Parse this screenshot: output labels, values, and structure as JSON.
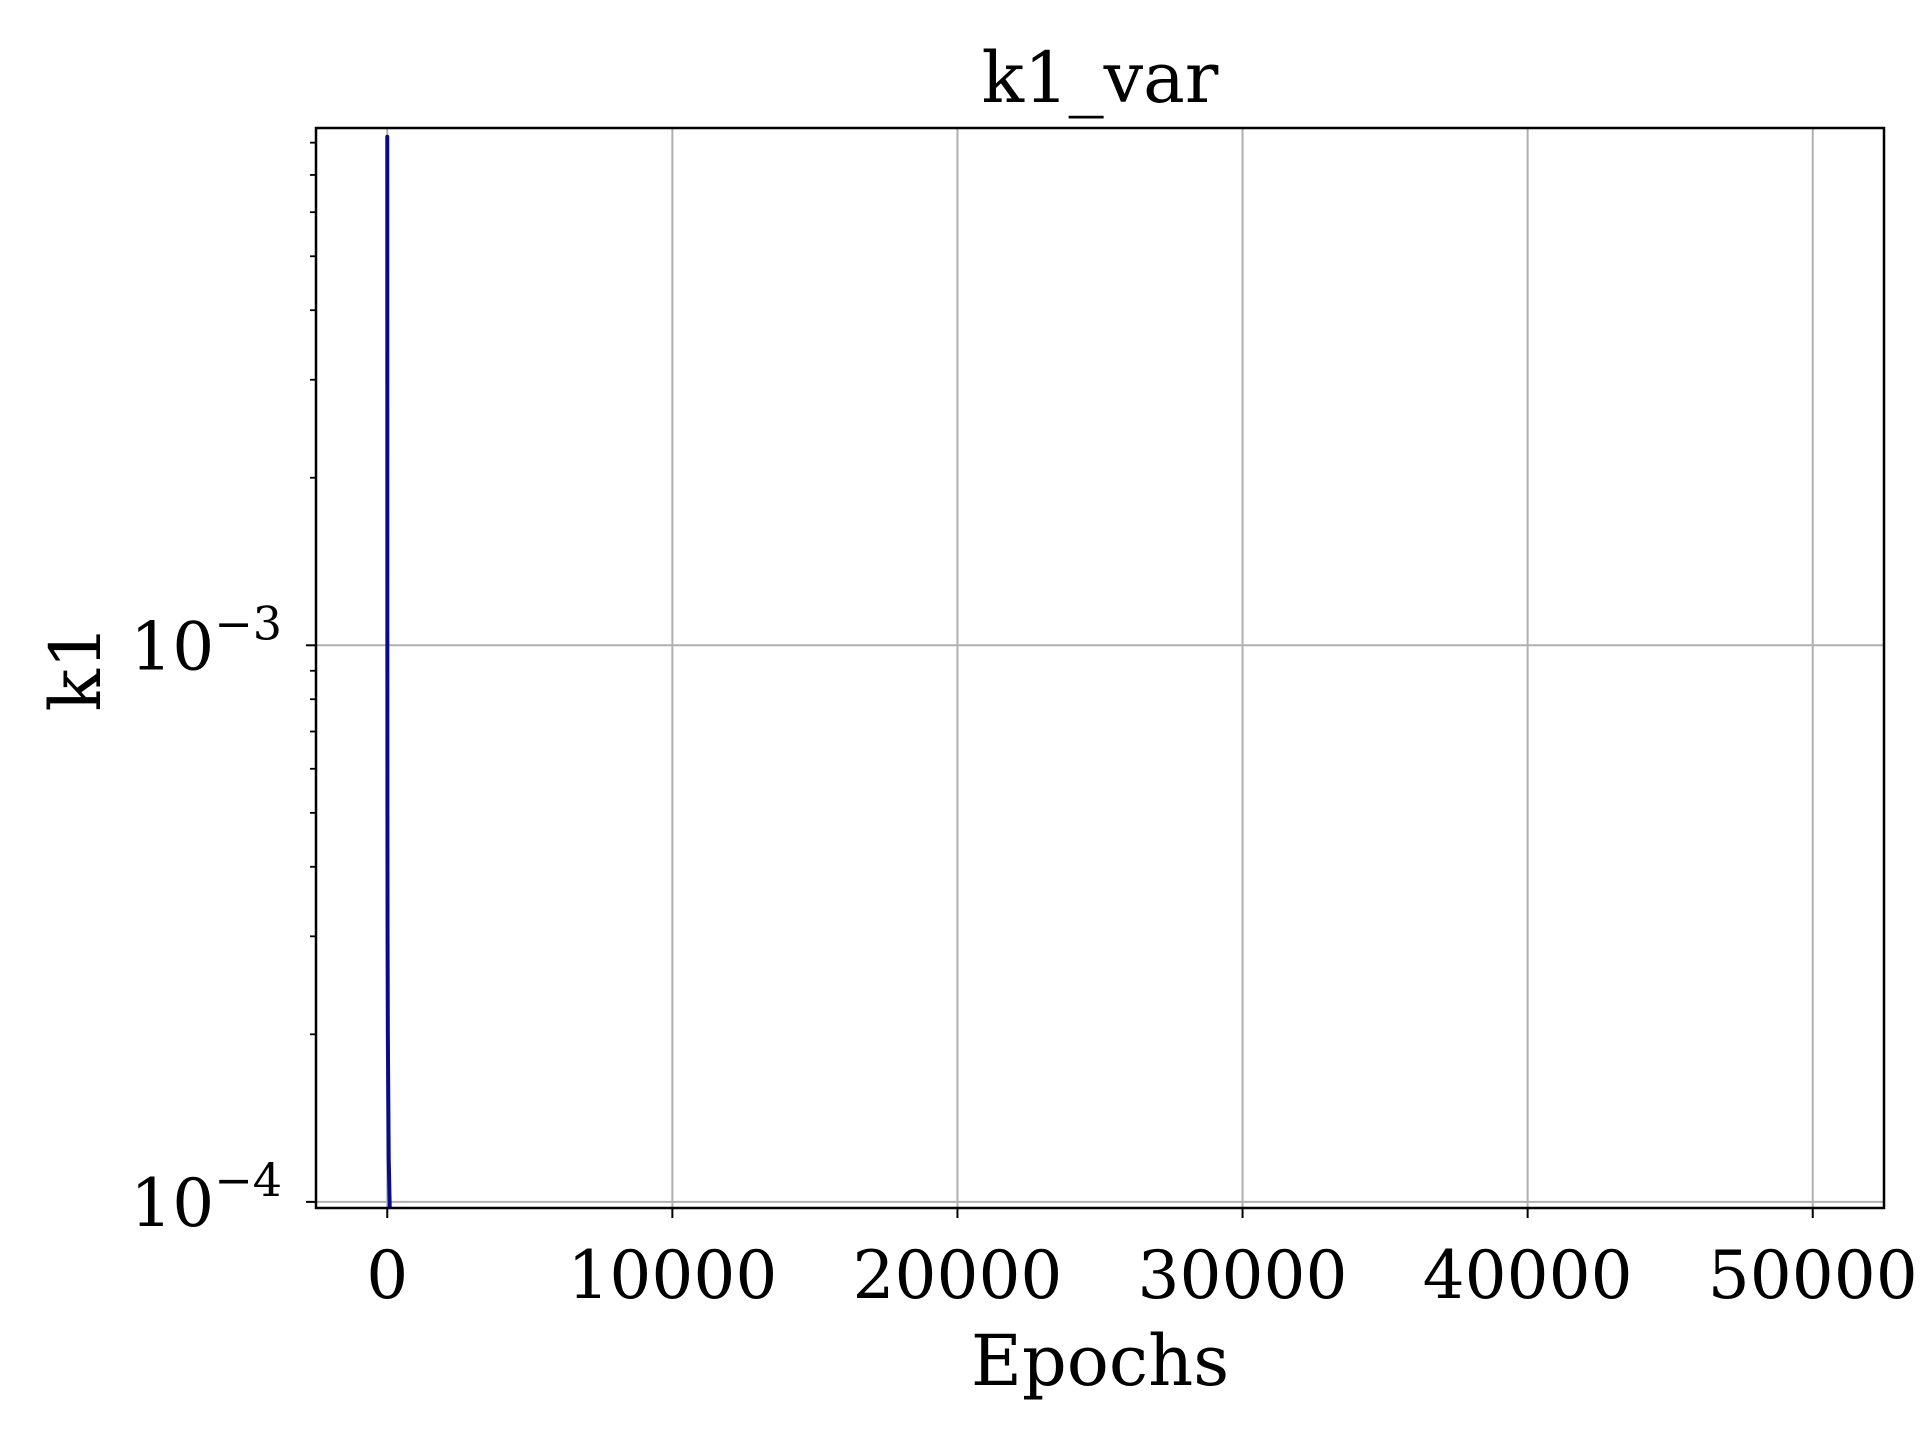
{
  "chart_data": {
    "type": "line",
    "title": "k1_var",
    "xlabel": "Epochs",
    "ylabel": "k1",
    "x_scale": "linear",
    "y_scale": "log",
    "xlim": [
      -2500,
      52500
    ],
    "ylim": [
      9.75e-05,
      0.0085
    ],
    "x_ticks": [
      0,
      10000,
      20000,
      30000,
      40000,
      50000
    ],
    "x_tick_labels": [
      "0",
      "10000",
      "20000",
      "30000",
      "40000",
      "50000"
    ],
    "y_major_ticks": [
      {
        "value": 0.0001,
        "base": "10",
        "exponent": "−4"
      },
      {
        "value": 0.001,
        "base": "10",
        "exponent": "−3"
      }
    ],
    "y_minor_ticks": [
      0.0002,
      0.0003,
      0.0004,
      0.0005,
      0.0006,
      0.0007,
      0.0008,
      0.0009,
      0.002,
      0.003,
      0.004,
      0.005,
      0.006,
      0.007,
      0.008
    ],
    "grid": true,
    "legend": "none",
    "series": [
      {
        "color": "#0a0a8c",
        "x": [
          0,
          1,
          2,
          3,
          5,
          10,
          20,
          50,
          100
        ],
        "y": [
          0.0082,
          0.005,
          0.002,
          0.001,
          0.0005,
          0.0003,
          0.0002,
          0.00012,
          9e-05
        ]
      }
    ]
  }
}
